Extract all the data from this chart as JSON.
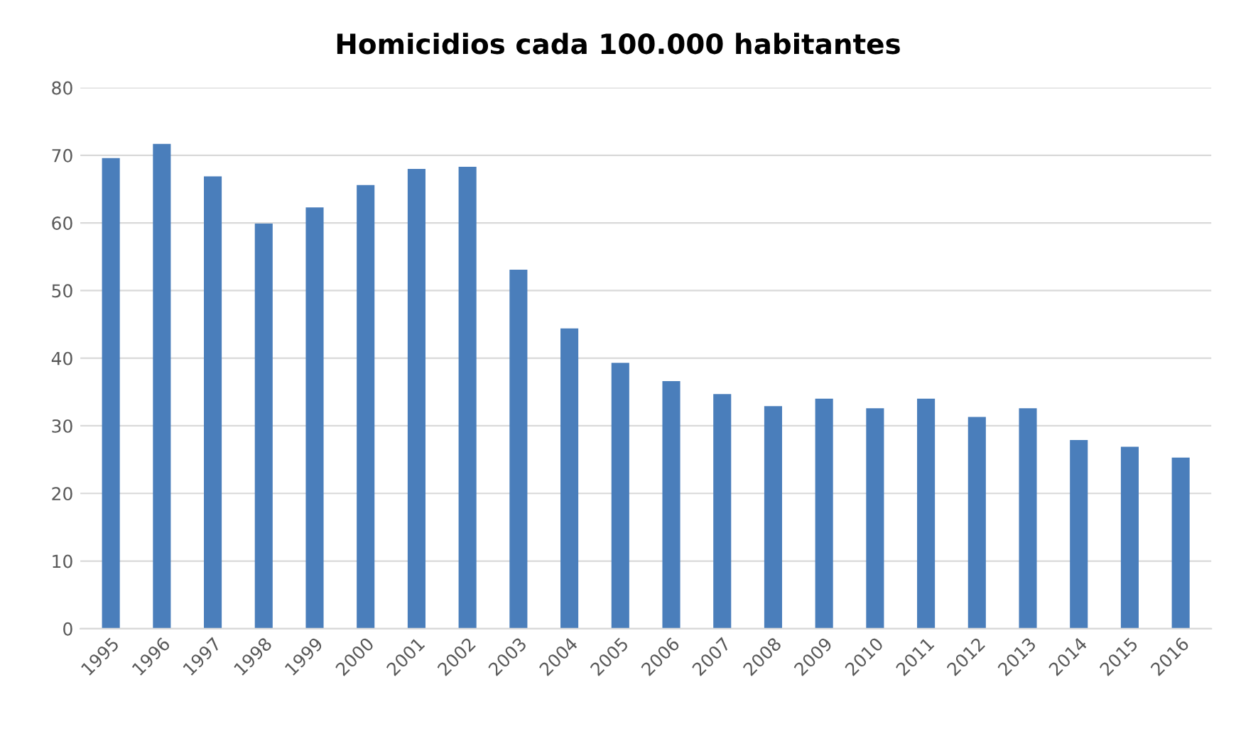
{
  "chart_data": {
    "type": "bar",
    "title": "Homicidios cada 100.000 habitantes",
    "categories": [
      "1995",
      "1996",
      "1997",
      "1998",
      "1999",
      "2000",
      "2001",
      "2002",
      "2003",
      "2004",
      "2005",
      "2006",
      "2007",
      "2008",
      "2009",
      "2010",
      "2011",
      "2012",
      "2013",
      "2014",
      "2015",
      "2016"
    ],
    "values": [
      69.6,
      71.7,
      66.9,
      59.9,
      62.3,
      65.6,
      68.0,
      68.3,
      53.1,
      44.4,
      39.3,
      36.6,
      34.7,
      32.9,
      34.0,
      32.6,
      34.0,
      31.3,
      32.6,
      27.9,
      26.9,
      25.3
    ],
    "color": "#4a7ebb",
    "ylim": [
      0,
      80
    ],
    "yticks": [
      0,
      10,
      20,
      30,
      40,
      50,
      60,
      70,
      80
    ],
    "grid": "y"
  }
}
